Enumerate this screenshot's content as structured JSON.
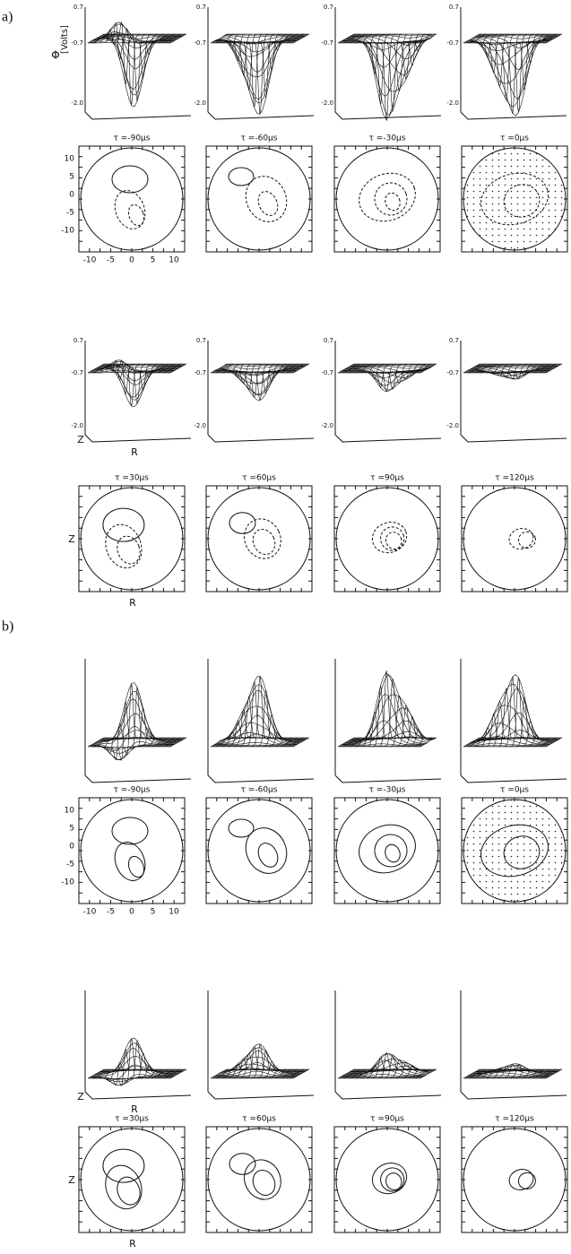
{
  "figure": {
    "panels": [
      {
        "label": "a)",
        "phi": "Φ",
        "units": "[Volts]",
        "surface_ticks": [
          "0.7",
          "-0.7",
          "-2.0"
        ],
        "contour_y_ticks": [
          "10",
          "5",
          "0",
          "-5",
          "-10"
        ],
        "contour_x_ticks": [
          "-10",
          "-5",
          "0",
          "5",
          "10"
        ],
        "axis_z": "Z",
        "axis_r": "R",
        "early_times": [
          "τ =-90μs",
          "τ =-60μs",
          "τ =-30μs",
          "τ =0μs"
        ],
        "late_times": [
          "τ =30μs",
          "τ =60μs",
          "τ =90μs",
          "τ =120μs"
        ]
      },
      {
        "label": "b)",
        "contour_y_ticks": [
          "10",
          "5",
          "0",
          "-5",
          "-10"
        ],
        "contour_x_ticks": [
          "-10",
          "-5",
          "0",
          "5",
          "10"
        ],
        "axis_z": "Z",
        "axis_r": "R",
        "early_times": [
          "τ =-90μs",
          "τ =-60μs",
          "τ =-30μs",
          "τ =0μs"
        ],
        "late_times": [
          "τ =30μs",
          "τ =60μs",
          "τ =90μs",
          "τ =120μs"
        ]
      }
    ]
  }
}
